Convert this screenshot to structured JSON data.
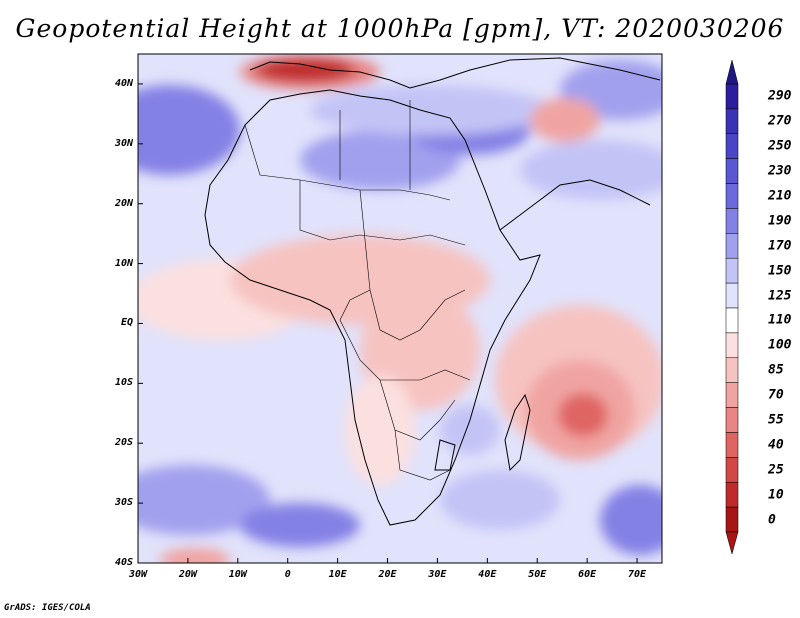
{
  "title": "Geopotential Height at 1000hPa [gpm], VT: 2020030206",
  "credit": "GrADS: IGES/COLA",
  "latitude_labels": [
    "40N",
    "30N",
    "20N",
    "10N",
    "EQ",
    "10S",
    "20S",
    "30S",
    "40S"
  ],
  "longitude_labels": [
    "30W",
    "20W",
    "10W",
    "0",
    "10E",
    "20E",
    "30E",
    "40E",
    "50E",
    "60E",
    "70E"
  ],
  "colorbar": {
    "labels": [
      "290",
      "270",
      "250",
      "230",
      "210",
      "190",
      "170",
      "150",
      "125",
      "110",
      "100",
      "85",
      "70",
      "55",
      "40",
      "25",
      "10",
      "0"
    ],
    "colors": [
      "#2b1f9e",
      "#3a33b5",
      "#4a45c6",
      "#5a57d2",
      "#6c69dc",
      "#8481e5",
      "#a1a0ee",
      "#c3c4f6",
      "#e1e2fb",
      "#ffffff",
      "#fbe0df",
      "#f6c3c1",
      "#f0a4a2",
      "#e98584",
      "#df6563",
      "#d24846",
      "#bf2b2a",
      "#a81515"
    ]
  },
  "map": {
    "lon_range": [
      -30,
      75
    ],
    "lat_range": [
      -40,
      45
    ]
  },
  "icons": [
    "colorbar-up-arrow-icon",
    "colorbar-down-arrow-icon"
  ]
}
